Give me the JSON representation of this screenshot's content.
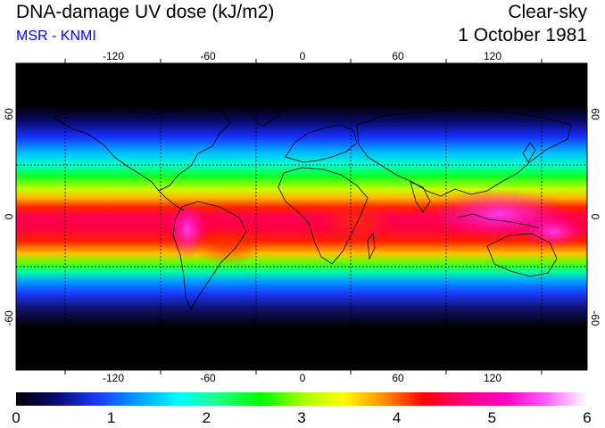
{
  "header": {
    "title": "DNA-damage UV dose (kJ/m2)",
    "subtitle": "MSR - KNMI",
    "subtitle_color": "#0000ff",
    "sky": "Clear-sky",
    "date": "1 October 1981"
  },
  "map": {
    "lon_ticks": [
      "-120",
      "-60",
      "0",
      "60",
      "120"
    ],
    "lat_ticks_left": [
      "60",
      "0",
      "-60"
    ],
    "lat_ticks_right": [
      "60",
      "0",
      "-60"
    ],
    "graticule": "dashed black"
  },
  "colorbar": {
    "labels": [
      "0",
      "1",
      "2",
      "3",
      "4",
      "5",
      "6"
    ],
    "min": 0,
    "max": 6,
    "colors": [
      "#000000",
      "#0a0a70",
      "#1a3aff",
      "#00a0ff",
      "#00ffff",
      "#20ff80",
      "#00ff00",
      "#a0ff00",
      "#ffff00",
      "#ff9000",
      "#ff0000",
      "#ff0080",
      "#ff00c0",
      "#ff60ff",
      "#ffffff"
    ]
  }
}
